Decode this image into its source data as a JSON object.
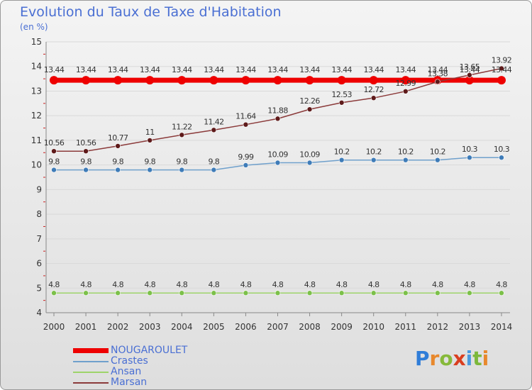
{
  "header": {
    "title": "Evolution du Taux de Taxe d'Habitation",
    "unit": "(en %)"
  },
  "logo": {
    "letters": [
      "P",
      "r",
      "o",
      "x",
      "i",
      "t",
      "i"
    ],
    "colors": [
      "#2f7dd8",
      "#e8882c",
      "#86b93a",
      "#d93e1f",
      "#4a9adf",
      "#7cb83c",
      "#e8882c"
    ]
  },
  "colors": {
    "axis_text": "#333333",
    "grid": "#d9d9d9",
    "tick_red": "#cc2222"
  },
  "chart_data": {
    "type": "line",
    "title": "Evolution du Taux de Taxe d'Habitation",
    "ylabel": "(en %)",
    "xlabel": "",
    "categories": [
      "2000",
      "2001",
      "2002",
      "2003",
      "2004",
      "2005",
      "2006",
      "2007",
      "2008",
      "2009",
      "2010",
      "2011",
      "2012",
      "2013",
      "2014"
    ],
    "ylim": [
      4,
      15
    ],
    "yticks": [
      4,
      5,
      6,
      7,
      8,
      9,
      10,
      11,
      12,
      13,
      14,
      15
    ],
    "grid": "horizontal",
    "legend_position": "bottom-left",
    "series": [
      {
        "name": "NOUGAROULET",
        "color": "#ee0000",
        "marker": "#ee0000",
        "width": 7,
        "markerRadius": 6,
        "values": [
          13.44,
          13.44,
          13.44,
          13.44,
          13.44,
          13.44,
          13.44,
          13.44,
          13.44,
          13.44,
          13.44,
          13.44,
          13.44,
          13.44,
          13.44
        ],
        "labels": [
          "13.44",
          "13.44",
          "13.44",
          "13.44",
          "13.44",
          "13.44",
          "13.44",
          "13.44",
          "13.44",
          "13.44",
          "13.44",
          "13.44",
          "13.44",
          "13.44",
          "13.44"
        ]
      },
      {
        "name": "Crastes",
        "color": "#6fa0cc",
        "marker": "#3f7cb8",
        "width": 1.5,
        "markerRadius": 3.5,
        "values": [
          9.8,
          9.8,
          9.8,
          9.8,
          9.8,
          9.8,
          9.99,
          10.09,
          10.09,
          10.2,
          10.2,
          10.2,
          10.2,
          10.3,
          10.3
        ],
        "labels": [
          "9.8",
          "9.8",
          "9.8",
          "9.8",
          "9.8",
          "9.8",
          "9.99",
          "10.09",
          "10.09",
          "10.2",
          "10.2",
          "10.2",
          "10.2",
          "10.3",
          "10.3"
        ]
      },
      {
        "name": "Ansan",
        "color": "#9ed46a",
        "marker": "#7cc04a",
        "width": 1.5,
        "markerRadius": 3.5,
        "values": [
          4.8,
          4.8,
          4.8,
          4.8,
          4.8,
          4.8,
          4.8,
          4.8,
          4.8,
          4.8,
          4.8,
          4.8,
          4.8,
          4.8,
          4.8
        ],
        "labels": [
          "4.8",
          "4.8",
          "4.8",
          "4.8",
          "4.8",
          "4.8",
          "4.8",
          "4.8",
          "4.8",
          "4.8",
          "4.8",
          "4.8",
          "4.8",
          "4.8",
          "4.8"
        ]
      },
      {
        "name": "Marsan",
        "color": "#8b3a3a",
        "marker": "#5e1a1a",
        "width": 1.5,
        "markerRadius": 3.5,
        "values": [
          10.56,
          10.56,
          10.77,
          11,
          11.22,
          11.42,
          11.64,
          11.88,
          12.26,
          12.53,
          12.72,
          12.99,
          13.38,
          13.65,
          13.92
        ],
        "labels": [
          "10.56",
          "10.56",
          "10.77",
          "11",
          "11.22",
          "11.42",
          "11.64",
          "11.88",
          "12.26",
          "12.53",
          "12.72",
          "12.99",
          "13.38",
          "13.65",
          "13.92"
        ]
      }
    ]
  }
}
